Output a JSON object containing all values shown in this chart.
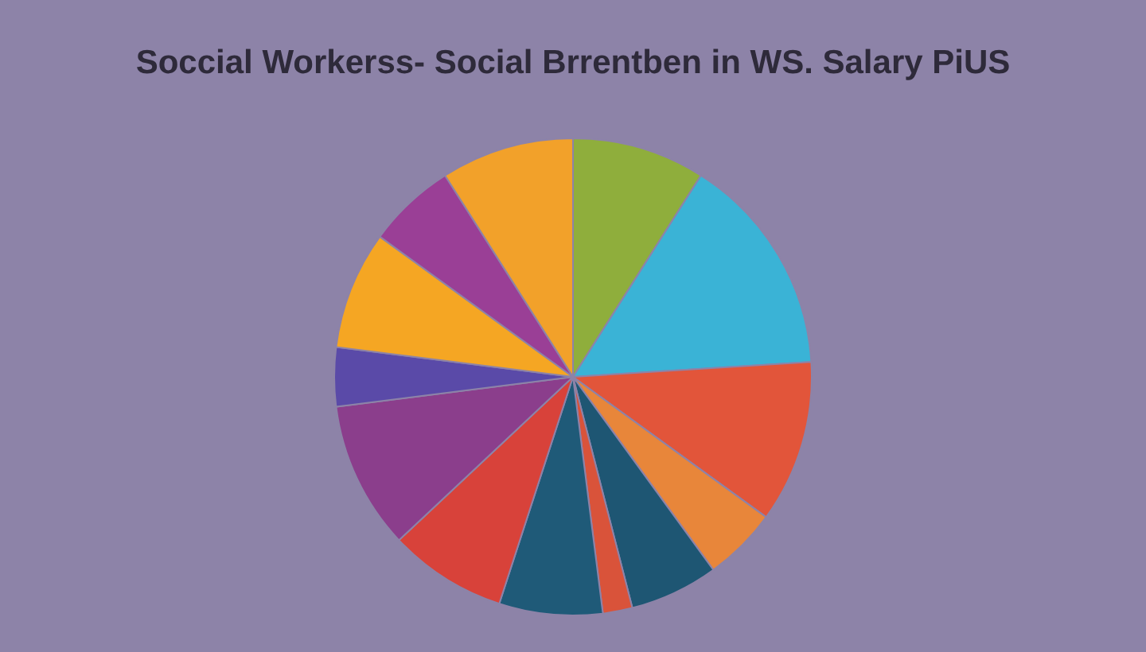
{
  "chart_data": {
    "type": "pie",
    "title": "Soccial Workerss- Social Brrentben in WS. Salary PiUS",
    "categories": [
      null,
      null,
      null,
      null,
      null,
      null,
      null,
      null,
      null,
      null,
      null,
      null,
      null
    ],
    "values": [
      9,
      15,
      11,
      5,
      6,
      2,
      7,
      8,
      10,
      4,
      8,
      6,
      9
    ],
    "colors": [
      "#8fae3c",
      "#3ab3d6",
      "#e2553a",
      "#e8863a",
      "#1e5673",
      "#d9533a",
      "#1f5a78",
      "#d8423a",
      "#8b3e8c",
      "#5a4aa8",
      "#f5a623",
      "#9a3f96",
      "#f2a12a"
    ]
  }
}
